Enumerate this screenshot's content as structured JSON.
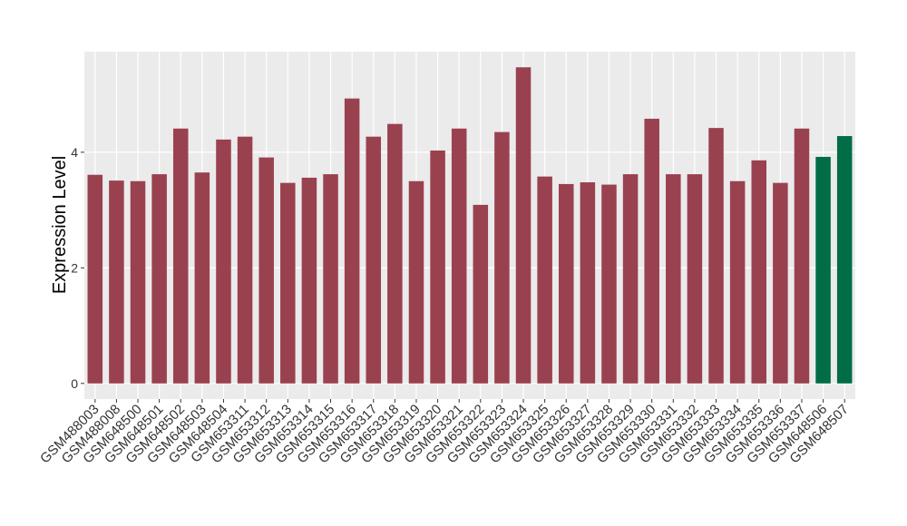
{
  "chart_data": {
    "type": "bar",
    "y_label": "Expression Level",
    "categories": [
      "GSM488003",
      "GSM488008",
      "GSM648500",
      "GSM648501",
      "GSM648502",
      "GSM648503",
      "GSM648504",
      "GSM653311",
      "GSM653312",
      "GSM653313",
      "GSM653314",
      "GSM653315",
      "GSM653316",
      "GSM653317",
      "GSM653318",
      "GSM653319",
      "GSM653320",
      "GSM653321",
      "GSM653322",
      "GSM653323",
      "GSM653324",
      "GSM653325",
      "GSM653326",
      "GSM653327",
      "GSM653328",
      "GSM653329",
      "GSM653330",
      "GSM653331",
      "GSM653332",
      "GSM653333",
      "GSM653334",
      "GSM653335",
      "GSM653336",
      "GSM653337",
      "GSM648506",
      "GSM648507"
    ],
    "values": [
      3.61,
      3.51,
      3.5,
      3.62,
      4.41,
      3.65,
      4.22,
      4.27,
      3.91,
      3.47,
      3.56,
      3.62,
      4.93,
      4.27,
      4.49,
      3.5,
      4.03,
      4.41,
      3.09,
      4.35,
      5.47,
      3.58,
      3.45,
      3.48,
      3.44,
      3.62,
      4.58,
      3.62,
      3.62,
      4.42,
      3.5,
      3.86,
      3.47,
      4.41,
      3.92,
      4.28
    ],
    "colors": [
      "#9a4150",
      "#9a4150",
      "#9a4150",
      "#9a4150",
      "#9a4150",
      "#9a4150",
      "#9a4150",
      "#9a4150",
      "#9a4150",
      "#9a4150",
      "#9a4150",
      "#9a4150",
      "#9a4150",
      "#9a4150",
      "#9a4150",
      "#9a4150",
      "#9a4150",
      "#9a4150",
      "#9a4150",
      "#9a4150",
      "#9a4150",
      "#9a4150",
      "#9a4150",
      "#9a4150",
      "#9a4150",
      "#9a4150",
      "#9a4150",
      "#9a4150",
      "#9a4150",
      "#9a4150",
      "#9a4150",
      "#9a4150",
      "#9a4150",
      "#9a4150",
      "#006d46",
      "#006d46"
    ],
    "ylim": [
      -0.27,
      5.74
    ],
    "yticks": [
      0,
      2,
      4
    ],
    "grid": true
  }
}
